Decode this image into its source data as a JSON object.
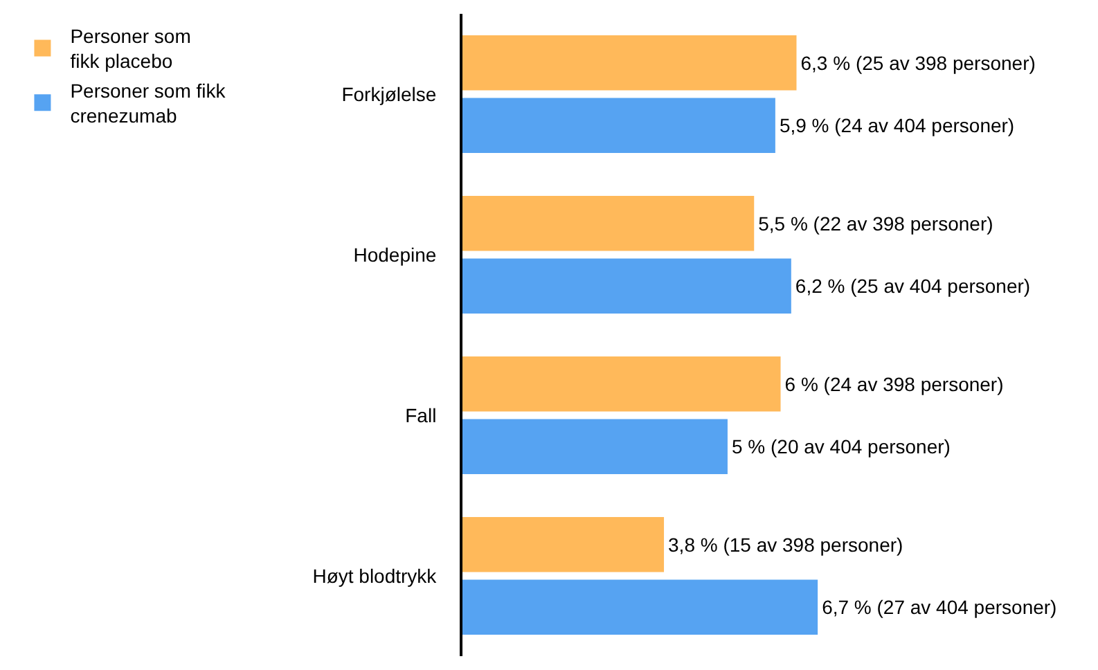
{
  "chart_data": {
    "type": "bar",
    "orientation": "horizontal",
    "legend": "top left",
    "categories": [
      "Forkjølelse",
      "Hodepine",
      "Fall",
      "Høyt blodtrykk"
    ],
    "series": [
      {
        "name": "Personer som\nfikk placebo",
        "color": "#ffb95a",
        "values": [
          6.3,
          5.5,
          6,
          3.8
        ],
        "value_labels": [
          "6,3 % (25 av 398 personer)",
          "5,5 % (22 av 398 personer)",
          "6 % (24 av 398 personer)",
          "3,8 % (15 av 398 personer)"
        ]
      },
      {
        "name": "Personer som fikk\ncrenezumab",
        "color": "#56a3f2",
        "values": [
          5.9,
          6.2,
          5,
          6.7
        ],
        "value_labels": [
          "5,9 % (24 av 404 personer)",
          "6,2 % (25 av 404 personer)",
          "5 % (20 av 404 personer)",
          "6,7 % (27 av 404 personer)"
        ]
      }
    ]
  }
}
